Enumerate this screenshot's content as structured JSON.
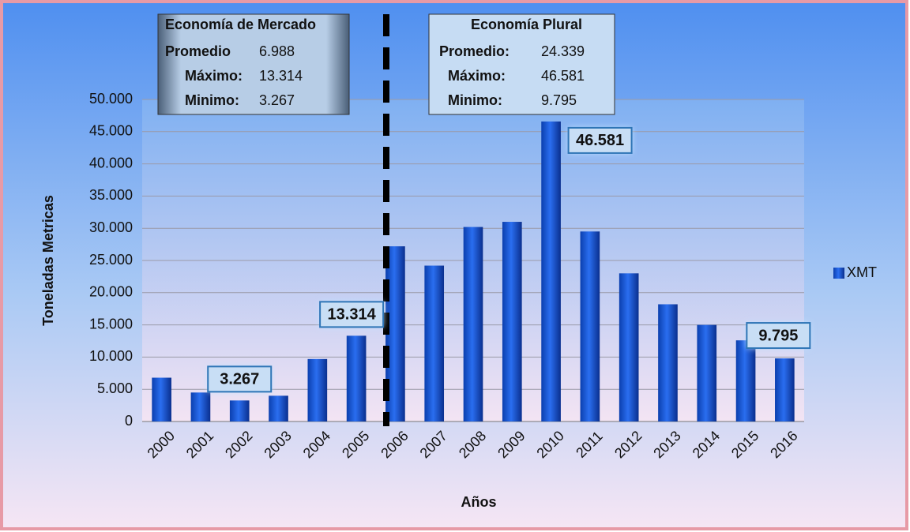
{
  "chart_data": {
    "type": "bar",
    "x_label": "Años",
    "y_label": "Toneladas Metricas",
    "categories": [
      "2000",
      "2001",
      "2002",
      "2003",
      "2004",
      "2005",
      "2006",
      "2007",
      "2008",
      "2009",
      "2010",
      "2011",
      "2012",
      "2013",
      "2014",
      "2015",
      "2016"
    ],
    "series": [
      {
        "name": "XMT",
        "color": "#1a5ad6",
        "values": [
          6800,
          4500,
          3267,
          4000,
          9700,
          13314,
          27200,
          24200,
          30200,
          31000,
          46581,
          29500,
          23000,
          18200,
          15000,
          12600,
          9795
        ],
        "value_labels": [
          null,
          null,
          "3.267",
          null,
          null,
          "13.314",
          null,
          null,
          null,
          null,
          "46.581",
          null,
          null,
          null,
          null,
          null,
          "9.795"
        ]
      }
    ],
    "ylim": [
      0,
      50000
    ],
    "yticks": [
      0,
      {
        "value": 5000,
        "label": "5.000"
      },
      {
        "value": 10000,
        "label": "10.000"
      },
      {
        "value": 15000,
        "label": "15.000"
      },
      {
        "value": 20000,
        "label": "20.000"
      },
      {
        "value": 25000,
        "label": "25.000"
      },
      {
        "value": 30000,
        "label": "30.000"
      },
      {
        "value": 35000,
        "label": "35.000"
      },
      {
        "value": 40000,
        "label": "40.000"
      },
      {
        "value": 45000,
        "label": "45.000"
      },
      {
        "value": 50000,
        "label": "50.000"
      }
    ],
    "grid": true,
    "legend": "right",
    "panels": [
      {
        "title": "Economía de Mercado",
        "rows": [
          {
            "label": "Promedio",
            "value": "6.988"
          },
          {
            "label": "Máximo:",
            "value": "13.314"
          },
          {
            "label": "Minimo:",
            "value": "3.267"
          }
        ]
      },
      {
        "title": "Economía Plural",
        "rows": [
          {
            "label": "Promedio:",
            "value": "24.339"
          },
          {
            "label": "Máximo:",
            "value": "46.581"
          },
          {
            "label": "Minimo:",
            "value": "9.795"
          }
        ]
      }
    ]
  }
}
